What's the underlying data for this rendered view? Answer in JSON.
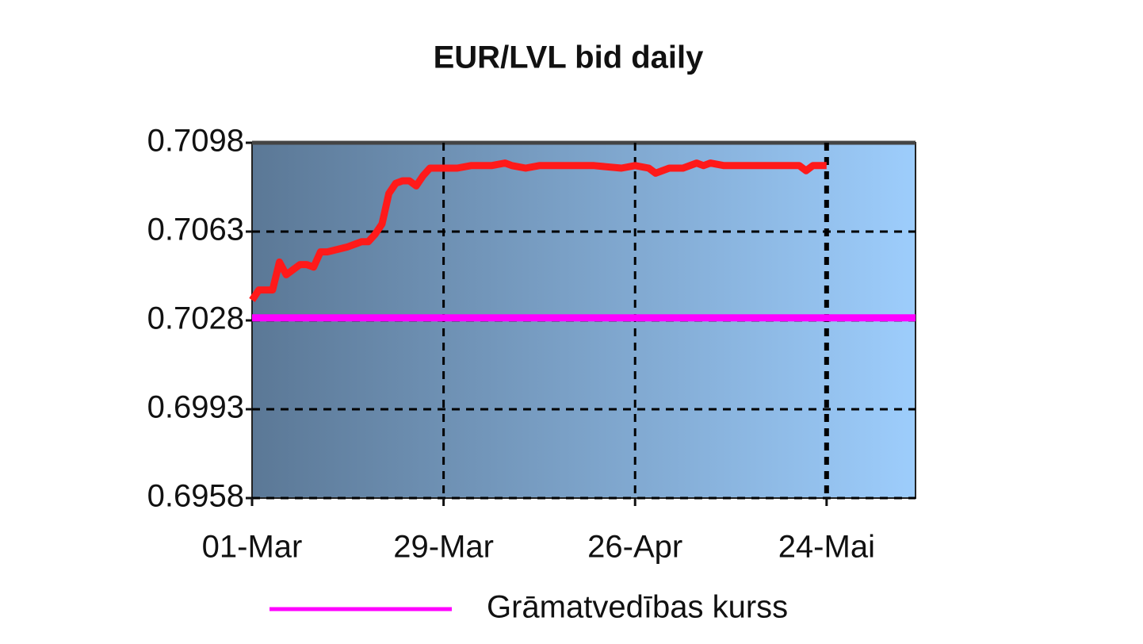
{
  "chart_data": {
    "type": "line",
    "title": "EUR/LVL bid daily",
    "xlim": [
      0,
      97
    ],
    "xticks": [
      {
        "value": 0,
        "label": "01-Mar"
      },
      {
        "value": 28,
        "label": "29-Mar"
      },
      {
        "value": 56,
        "label": "26-Apr"
      },
      {
        "value": 84,
        "label": "24-Mai"
      }
    ],
    "ylim": [
      0.6958,
      0.7098
    ],
    "yticks": [
      0.6958,
      0.6993,
      0.7028,
      0.7063,
      0.7098
    ],
    "grid": true,
    "legend": "bottom",
    "series": [
      {
        "color": "#ff1a1a",
        "x": [
          0,
          1,
          3,
          4,
          5,
          7,
          8,
          9,
          10,
          11,
          14,
          15,
          16,
          17,
          18,
          19,
          20,
          21,
          22,
          23,
          24,
          25,
          26,
          28,
          30,
          32,
          35,
          37,
          38,
          40,
          42,
          45,
          50,
          54,
          56,
          58,
          59,
          61,
          63,
          65,
          66,
          67,
          69,
          72,
          78,
          80,
          81,
          82,
          84
        ],
        "values": [
          0.7036,
          0.704,
          0.704,
          0.7051,
          0.7046,
          0.705,
          0.705,
          0.7049,
          0.7055,
          0.7055,
          0.7057,
          0.7058,
          0.7059,
          0.7059,
          0.7062,
          0.7066,
          0.7078,
          0.7082,
          0.7083,
          0.7083,
          0.7081,
          0.7085,
          0.7088,
          0.7088,
          0.7088,
          0.7089,
          0.7089,
          0.709,
          0.7089,
          0.7088,
          0.7089,
          0.7089,
          0.7089,
          0.7088,
          0.7089,
          0.7088,
          0.7086,
          0.7088,
          0.7088,
          0.709,
          0.7089,
          0.709,
          0.7089,
          0.7089,
          0.7089,
          0.7089,
          0.7087,
          0.7089,
          0.7089
        ]
      },
      {
        "name": "Grāmatvedības kurss",
        "color": "#ff00ff",
        "x": [
          0,
          97
        ],
        "values": [
          0.7029,
          0.7029
        ]
      }
    ]
  }
}
